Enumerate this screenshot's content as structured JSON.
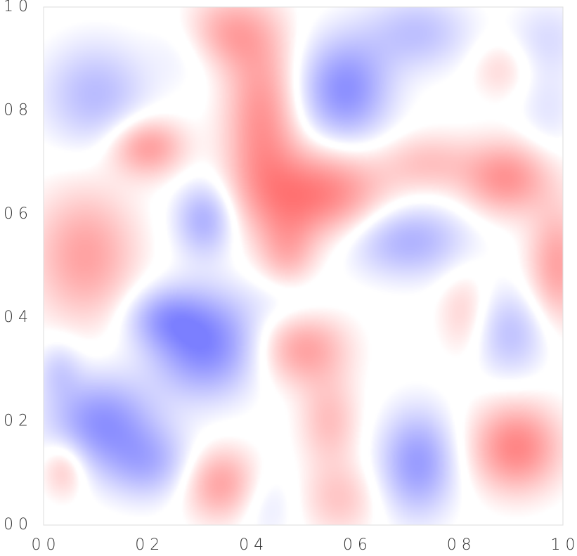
{
  "chart_data": {
    "type": "heatmap",
    "title": "",
    "xlabel": "",
    "ylabel": "",
    "xlim": [
      0,
      1
    ],
    "ylim": [
      0,
      1
    ],
    "x_ticks": [
      0.0,
      0.2,
      0.4,
      0.6,
      0.8,
      1.0
    ],
    "y_ticks": [
      0.0,
      0.2,
      0.4,
      0.6,
      0.8,
      1.0
    ],
    "x_tick_labels": [
      "0 0",
      "0 2",
      "0 4",
      "0 6",
      "0 8",
      "1 0"
    ],
    "y_tick_labels": [
      "0 0",
      "0 2",
      "0 4",
      "0 6",
      "0 8",
      "1 0"
    ],
    "grid": false,
    "colormap": {
      "negative": "#7b7fff",
      "zero": "#ffffff",
      "positive": "#ff6b6b"
    },
    "value_range": [
      -1,
      1
    ],
    "features": [
      {
        "x": 0.53,
        "y": 0.64,
        "sx": 0.09,
        "sy": 0.06,
        "value": 0.85
      },
      {
        "x": 0.42,
        "y": 0.78,
        "sx": 0.05,
        "sy": 0.12,
        "value": 0.7
      },
      {
        "x": 0.35,
        "y": 0.95,
        "sx": 0.06,
        "sy": 0.05,
        "value": 0.55
      },
      {
        "x": 0.47,
        "y": 0.52,
        "sx": 0.04,
        "sy": 0.06,
        "value": 0.45
      },
      {
        "x": 0.89,
        "y": 0.67,
        "sx": 0.06,
        "sy": 0.05,
        "value": 0.7
      },
      {
        "x": 0.74,
        "y": 0.7,
        "sx": 0.06,
        "sy": 0.04,
        "value": 0.35
      },
      {
        "x": 0.2,
        "y": 0.73,
        "sx": 0.05,
        "sy": 0.04,
        "value": 0.65
      },
      {
        "x": 0.08,
        "y": 0.52,
        "sx": 0.07,
        "sy": 0.09,
        "value": 0.6
      },
      {
        "x": 0.99,
        "y": 0.5,
        "sx": 0.04,
        "sy": 0.08,
        "value": 0.6
      },
      {
        "x": 0.5,
        "y": 0.34,
        "sx": 0.06,
        "sy": 0.05,
        "value": 0.6
      },
      {
        "x": 0.55,
        "y": 0.2,
        "sx": 0.04,
        "sy": 0.06,
        "value": 0.4
      },
      {
        "x": 0.57,
        "y": 0.05,
        "sx": 0.05,
        "sy": 0.05,
        "value": 0.35
      },
      {
        "x": 0.34,
        "y": 0.08,
        "sx": 0.05,
        "sy": 0.05,
        "value": 0.6
      },
      {
        "x": 0.91,
        "y": 0.15,
        "sx": 0.06,
        "sy": 0.06,
        "value": 0.8
      },
      {
        "x": 0.81,
        "y": 0.41,
        "sx": 0.035,
        "sy": 0.06,
        "value": 0.3
      },
      {
        "x": 0.04,
        "y": 0.11,
        "sx": 0.03,
        "sy": 0.04,
        "value": 0.4
      },
      {
        "x": 0.88,
        "y": 0.88,
        "sx": 0.04,
        "sy": 0.04,
        "value": 0.25
      },
      {
        "x": 0.58,
        "y": 0.84,
        "sx": 0.06,
        "sy": 0.07,
        "value": -0.85
      },
      {
        "x": 0.72,
        "y": 0.95,
        "sx": 0.07,
        "sy": 0.05,
        "value": -0.45
      },
      {
        "x": 0.1,
        "y": 0.83,
        "sx": 0.07,
        "sy": 0.07,
        "value": -0.5
      },
      {
        "x": 0.31,
        "y": 0.35,
        "sx": 0.07,
        "sy": 0.07,
        "value": -0.95
      },
      {
        "x": 0.23,
        "y": 0.4,
        "sx": 0.05,
        "sy": 0.04,
        "value": -0.5
      },
      {
        "x": 0.31,
        "y": 0.59,
        "sx": 0.04,
        "sy": 0.05,
        "value": -0.6
      },
      {
        "x": 0.11,
        "y": 0.2,
        "sx": 0.07,
        "sy": 0.06,
        "value": -0.8
      },
      {
        "x": 0.2,
        "y": 0.12,
        "sx": 0.06,
        "sy": 0.05,
        "value": -0.55
      },
      {
        "x": 0.7,
        "y": 0.55,
        "sx": 0.08,
        "sy": 0.05,
        "value": -0.6
      },
      {
        "x": 0.72,
        "y": 0.12,
        "sx": 0.05,
        "sy": 0.07,
        "value": -0.75
      },
      {
        "x": 0.9,
        "y": 0.37,
        "sx": 0.05,
        "sy": 0.06,
        "value": -0.45
      },
      {
        "x": 0.47,
        "y": 0.44,
        "sx": 0.05,
        "sy": 0.04,
        "value": -0.25
      },
      {
        "x": 0.28,
        "y": 0.92,
        "sx": 0.05,
        "sy": 0.05,
        "value": -0.2
      },
      {
        "x": 0.97,
        "y": 0.94,
        "sx": 0.05,
        "sy": 0.05,
        "value": -0.25
      },
      {
        "x": 0.97,
        "y": 0.8,
        "sx": 0.04,
        "sy": 0.06,
        "value": -0.2
      },
      {
        "x": 0.43,
        "y": 0.04,
        "sx": 0.04,
        "sy": 0.05,
        "value": -0.2
      },
      {
        "x": 0.03,
        "y": 0.3,
        "sx": 0.03,
        "sy": 0.04,
        "value": -0.3
      }
    ]
  }
}
